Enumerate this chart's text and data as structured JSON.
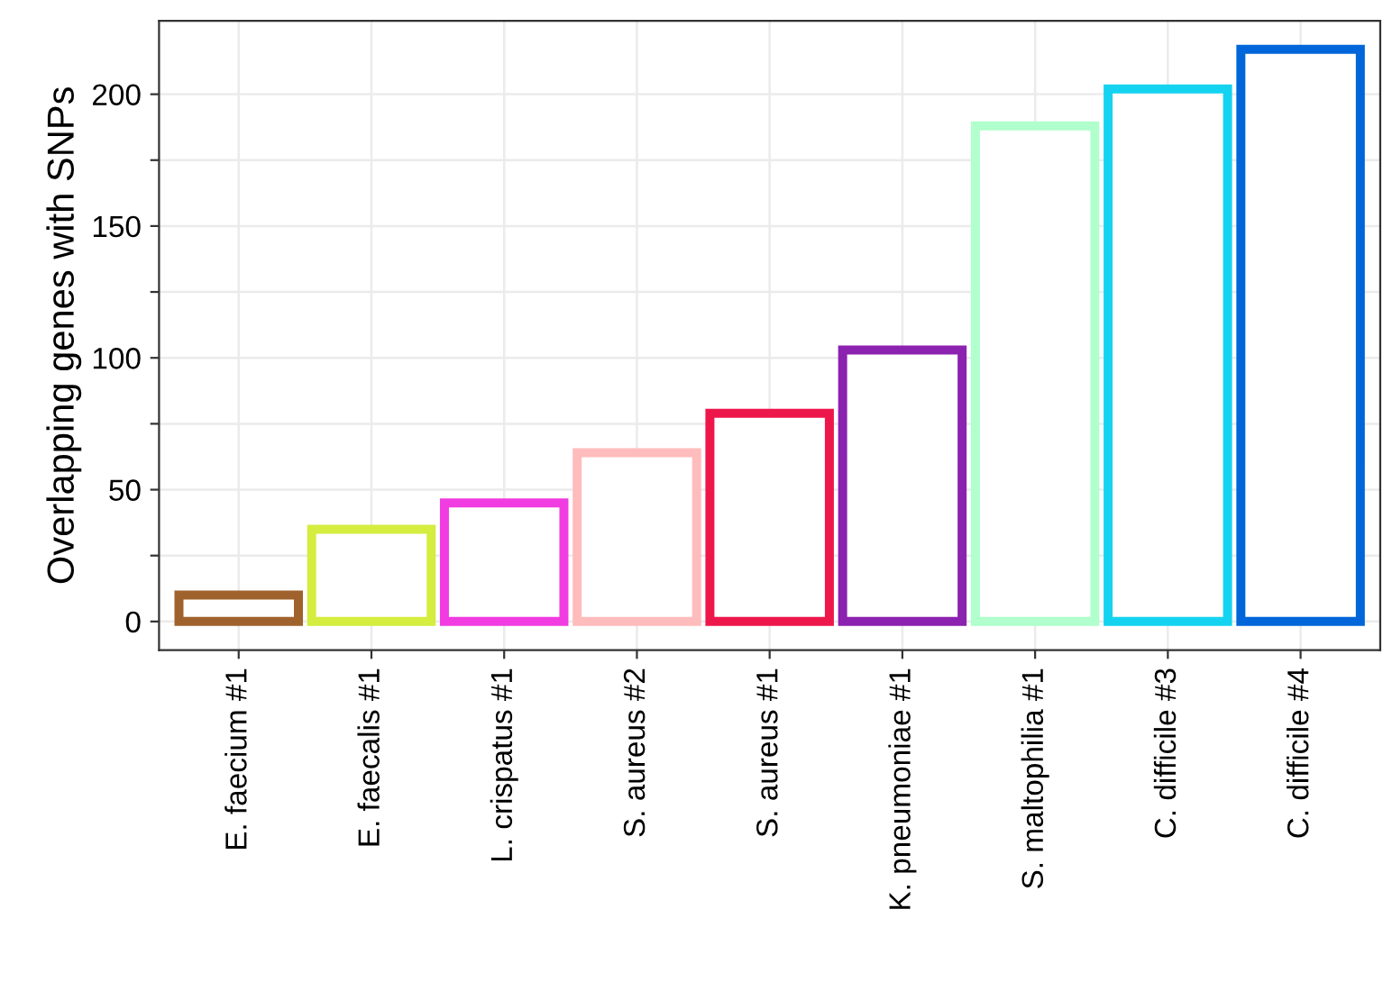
{
  "chart_data": {
    "type": "bar",
    "ylabel": "Overlapping genes with SNPs",
    "categories": [
      "E. faecium #1",
      "E. faecalis #1",
      "L. crispatus #1",
      "S. aureus #2",
      "S. aureus #1",
      "K. pneumoniae #1",
      "S. maltophilia #1",
      "C. difficile #3",
      "C. difficile #4"
    ],
    "values": [
      10,
      35,
      45,
      64,
      79,
      103,
      188,
      202,
      217
    ],
    "colors": [
      "#a0622d",
      "#d4ed3f",
      "#f03ce0",
      "#ffbcbc",
      "#ee174b",
      "#8b22b0",
      "#b0ffcc",
      "#14d3f0",
      "#0066d9"
    ],
    "ylim": [
      -10.85,
      227.85
    ],
    "yticks": [
      0,
      {
        "value": 25,
        "label": null
      },
      50,
      {
        "value": 75,
        "label": null
      },
      100,
      {
        "value": 125,
        "label": null
      },
      150,
      {
        "value": 175,
        "label": null
      },
      200
    ],
    "grid": true
  }
}
